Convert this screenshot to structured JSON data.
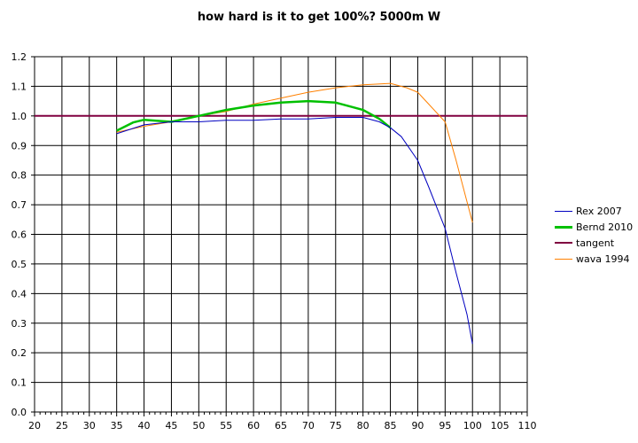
{
  "colors": {
    "background": "#ffffff",
    "grid": "#000000",
    "Rex 2007": "#0000c0",
    "Bernd 2010": "#00c000",
    "tangent": "#800040",
    "wava 1994": "#ff8000"
  },
  "chart_data": {
    "type": "line",
    "title": "how hard is it to get 100%? 5000m W",
    "xlabel": "",
    "ylabel": "",
    "xlim": [
      20,
      110
    ],
    "ylim": [
      0.0,
      1.2
    ],
    "x_ticks": [
      20,
      25,
      30,
      35,
      40,
      45,
      50,
      55,
      60,
      65,
      70,
      75,
      80,
      85,
      90,
      95,
      100,
      105,
      110
    ],
    "y_ticks": [
      "0.0",
      "0.1",
      "0.2",
      "0.3",
      "0.4",
      "0.5",
      "0.6",
      "0.7",
      "0.8",
      "0.9",
      "1.0",
      "1.1",
      "1.2"
    ],
    "grid": true,
    "legend_position": "right",
    "series": [
      {
        "name": "Rex 2007",
        "x": [
          35,
          40,
          45,
          50,
          55,
          60,
          65,
          70,
          75,
          80,
          83,
          85,
          87,
          90,
          92,
          95,
          97,
          99,
          100
        ],
        "y": [
          0.94,
          0.97,
          0.98,
          0.98,
          0.985,
          0.985,
          0.99,
          0.99,
          0.995,
          0.995,
          0.98,
          0.96,
          0.93,
          0.85,
          0.76,
          0.62,
          0.47,
          0.33,
          0.23
        ]
      },
      {
        "name": "Bernd 2010",
        "x": [
          35,
          38,
          40,
          45,
          50,
          55,
          60,
          65,
          70,
          75,
          80,
          83,
          85
        ],
        "y": [
          0.95,
          0.978,
          0.987,
          0.98,
          1.0,
          1.02,
          1.035,
          1.045,
          1.05,
          1.045,
          1.02,
          0.99,
          0.96
        ]
      },
      {
        "name": "tangent",
        "x": [
          20,
          110
        ],
        "y": [
          1.0,
          1.0
        ]
      },
      {
        "name": "wava 1994",
        "x": [
          35,
          40,
          45,
          50,
          55,
          60,
          65,
          70,
          75,
          80,
          85,
          88,
          90,
          92,
          95,
          97,
          100
        ],
        "y": [
          0.945,
          0.965,
          0.98,
          1.0,
          1.015,
          1.04,
          1.06,
          1.08,
          1.095,
          1.105,
          1.11,
          1.095,
          1.08,
          1.04,
          0.98,
          0.85,
          0.64
        ]
      }
    ]
  }
}
